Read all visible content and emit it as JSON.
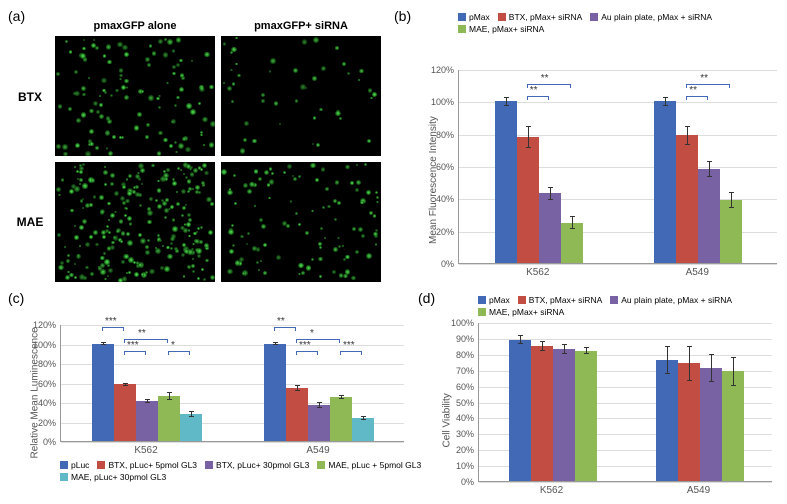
{
  "panels": {
    "a": "(a)",
    "b": "(b)",
    "c": "(c)",
    "d": "(d)"
  },
  "micro": {
    "col_headers": [
      "pmaxGFP alone",
      "pmaxGFP+ siRNA"
    ],
    "row_labels": [
      "BTX",
      "MAE"
    ]
  },
  "colors": {
    "blue": "#4169b5",
    "red": "#c24d43",
    "purple": "#7862a3",
    "green": "#8fb955",
    "teal": "#5fb9c7",
    "grid": "#dddddd",
    "axis": "#999999"
  },
  "chart_b": {
    "ylabel": "Mean Fluorescence Intensity",
    "yticks": [
      "0%",
      "20%",
      "40%",
      "60%",
      "80%",
      "100%",
      "120%"
    ],
    "ymax": 120,
    "groups": [
      "K562",
      "A549"
    ],
    "series": [
      {
        "label": "pMax",
        "color": "blue"
      },
      {
        "label": "BTX, pMax+ siRNA",
        "color": "red"
      },
      {
        "label": "Au plain plate, pMax + siRNA",
        "color": "purple"
      },
      {
        "label": "MAE, pMax+ siRNA",
        "color": "green"
      }
    ],
    "data": [
      [
        100,
        78,
        43,
        25
      ],
      [
        100,
        79,
        58,
        39
      ]
    ],
    "err": [
      [
        3,
        7,
        4,
        4
      ],
      [
        3,
        6,
        5,
        5
      ]
    ]
  },
  "chart_c": {
    "ylabel": "Relative Mean Luminescence",
    "yticks": [
      "0%",
      "20%",
      "40%",
      "60%",
      "80%",
      "100%",
      "120%"
    ],
    "ymax": 120,
    "groups": [
      "K562",
      "A549"
    ],
    "series": [
      {
        "label": "pLuc",
        "color": "blue"
      },
      {
        "label": "BTX, pLuc+ 5pmol GL3",
        "color": "red"
      },
      {
        "label": "BTX, pLuc+ 30pmol GL3",
        "color": "purple"
      },
      {
        "label": "MAE, pLuc + 5pmol GL3",
        "color": "green"
      },
      {
        "label": "MAE, pLuc+ 30pmol GL3",
        "color": "teal"
      }
    ],
    "data": [
      [
        100,
        58,
        41,
        46,
        28
      ],
      [
        100,
        54,
        37,
        45,
        24
      ]
    ],
    "err": [
      [
        2,
        2,
        2,
        4,
        3
      ],
      [
        2,
        3,
        3,
        2,
        2
      ]
    ]
  },
  "chart_d": {
    "ylabel": "Cell Viability",
    "yticks": [
      "0%",
      "10%",
      "20%",
      "30%",
      "40%",
      "50%",
      "60%",
      "70%",
      "80%",
      "90%",
      "100%"
    ],
    "ymax": 100,
    "groups": [
      "K562",
      "A549"
    ],
    "series": [
      {
        "label": "pMax",
        "color": "blue"
      },
      {
        "label": "BTX, pMax+ siRNA",
        "color": "red"
      },
      {
        "label": "Au plain plate, pMax + siRNA",
        "color": "purple"
      },
      {
        "label": "MAE, pMax+ siRNA",
        "color": "green"
      }
    ],
    "data": [
      [
        89,
        85,
        83,
        82
      ],
      [
        76,
        74,
        71,
        69
      ]
    ],
    "err": [
      [
        3,
        3,
        3,
        2
      ],
      [
        9,
        11,
        9,
        9
      ]
    ]
  }
}
